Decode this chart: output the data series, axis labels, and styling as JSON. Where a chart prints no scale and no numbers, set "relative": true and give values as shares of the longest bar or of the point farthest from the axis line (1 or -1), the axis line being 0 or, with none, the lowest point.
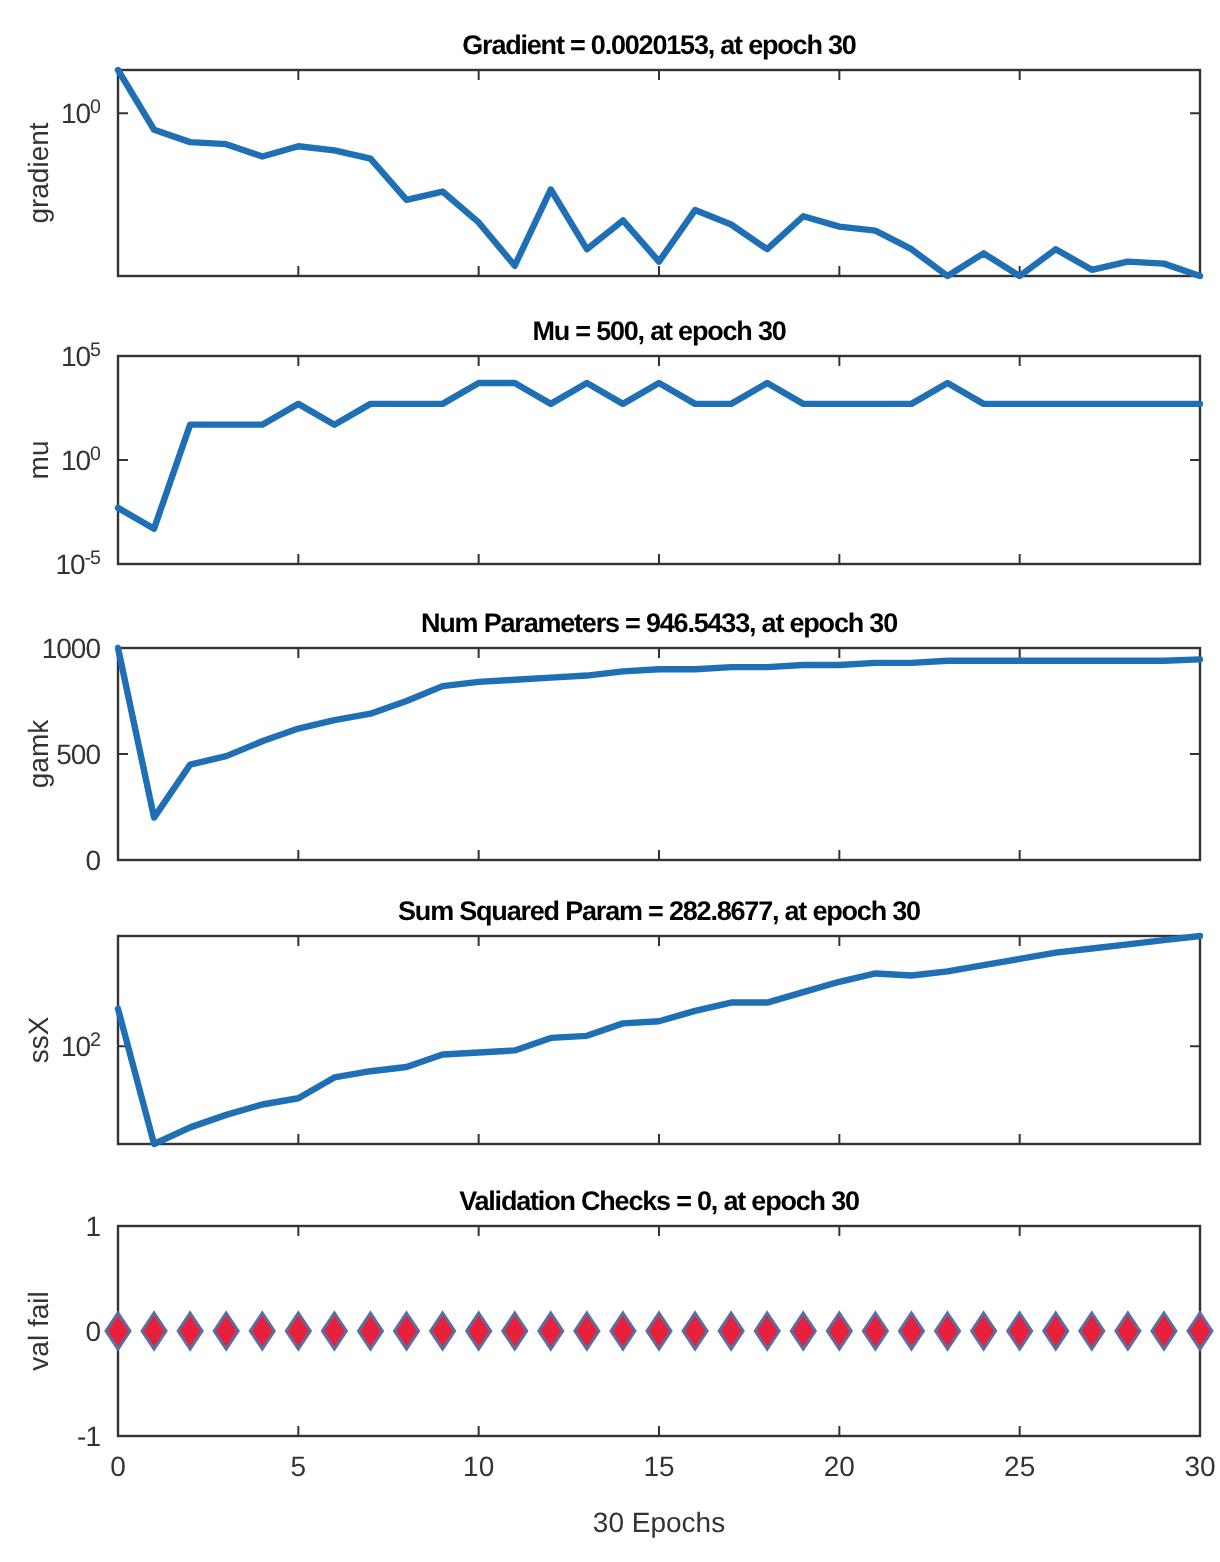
{
  "chart_data": [
    {
      "type": "line",
      "title": "Gradient = 0.0020153, at epoch 30",
      "ylabel": "gradient",
      "relative": true,
      "annotations": [
        "10$^{0}$"
      ],
      "tick_labels": "y",
      "xlim": [
        0,
        30
      ],
      "xticks": [
        0,
        5,
        10,
        15,
        20,
        25,
        30
      ],
      "x": [
        0,
        1,
        2,
        3,
        4,
        5,
        6,
        7,
        8,
        9,
        10,
        11,
        12,
        13,
        14,
        15,
        16,
        17,
        18,
        19,
        20,
        21,
        22,
        23,
        24,
        25,
        26,
        27,
        28,
        29,
        30
      ],
      "series": [
        {
          "color": "#1f6fb5",
          "values": [
            1,
            0.71,
            0.65,
            0.64,
            0.58,
            0.63,
            0.61,
            0.57,
            0.37,
            0.41,
            0.26,
            0.05,
            0.42,
            0.13,
            0.27,
            0.07,
            0.32,
            0.25,
            0.13,
            0.29,
            0.24,
            0.22,
            0.13,
            0,
            0.11,
            0,
            0.13,
            0.03,
            0.07,
            0.06,
            0
          ]
        }
      ]
    },
    {
      "type": "line",
      "title": "Mu = 500, at epoch 30",
      "ylabel": "mu",
      "log": "y",
      "tick_labels": "y",
      "xlim": [
        0,
        30
      ],
      "xticks": [
        0,
        5,
        10,
        15,
        20,
        25,
        30
      ],
      "ylim": [
        1e-05,
        100000
      ],
      "yticks": [
        {
          "value": 1e-05,
          "label": "10$^{-5}$"
        },
        {
          "value": 1,
          "label": "10$^{0}$"
        },
        {
          "value": 100000,
          "label": "10$^{5}$"
        }
      ],
      "x": [
        0,
        1,
        2,
        3,
        4,
        5,
        6,
        7,
        8,
        9,
        10,
        11,
        12,
        13,
        14,
        15,
        16,
        17,
        18,
        19,
        20,
        21,
        22,
        23,
        24,
        25,
        26,
        27,
        28,
        29,
        30
      ],
      "series": [
        {
          "color": "#1f6fb5",
          "values": [
            0.005,
            0.0005,
            50,
            50,
            50,
            500,
            50,
            500,
            500,
            500,
            5000,
            5000,
            500,
            5000,
            500,
            5000,
            500,
            500,
            5000,
            500,
            500,
            500,
            500,
            5000,
            500,
            500,
            500,
            500,
            500,
            500,
            500
          ]
        }
      ]
    },
    {
      "type": "line",
      "title": "Num Parameters = 946.5433, at epoch 30",
      "ylabel": "gamk",
      "tick_labels": "y",
      "xlim": [
        0,
        30
      ],
      "xticks": [
        0,
        5,
        10,
        15,
        20,
        25,
        30
      ],
      "ylim": [
        0,
        1000
      ],
      "yticks": [
        0,
        500,
        1000
      ],
      "x": [
        0,
        1,
        2,
        3,
        4,
        5,
        6,
        7,
        8,
        9,
        10,
        11,
        12,
        13,
        14,
        15,
        16,
        17,
        18,
        19,
        20,
        21,
        22,
        23,
        24,
        25,
        26,
        27,
        28,
        29,
        30
      ],
      "series": [
        {
          "color": "#1f6fb5",
          "values": [
            1000,
            200,
            450,
            490,
            560,
            620,
            660,
            690,
            750,
            820,
            840,
            850,
            860,
            870,
            890,
            900,
            900,
            910,
            910,
            920,
            920,
            930,
            930,
            940,
            940,
            940,
            940,
            940,
            940,
            940,
            946.5433
          ]
        }
      ]
    },
    {
      "type": "line",
      "title": "Sum Squared Param = 282.8677, at epoch 30",
      "ylabel": "ssX",
      "relative": true,
      "annotations": [
        "10$^{2}$"
      ],
      "tick_labels": "y",
      "xlim": [
        0,
        30
      ],
      "xticks": [
        0,
        5,
        10,
        15,
        20,
        25,
        30
      ],
      "x": [
        0,
        1,
        2,
        3,
        4,
        5,
        6,
        7,
        8,
        9,
        10,
        11,
        12,
        13,
        14,
        15,
        16,
        17,
        18,
        19,
        20,
        21,
        22,
        23,
        24,
        25,
        26,
        27,
        28,
        29,
        30
      ],
      "series": [
        {
          "color": "#1f6fb5",
          "values": [
            0.65,
            0,
            0.08,
            0.14,
            0.19,
            0.22,
            0.32,
            0.35,
            0.37,
            0.43,
            0.44,
            0.45,
            0.51,
            0.52,
            0.58,
            0.59,
            0.64,
            0.68,
            0.68,
            0.73,
            0.78,
            0.82,
            0.81,
            0.83,
            0.86,
            0.89,
            0.92,
            0.94,
            0.96,
            0.98,
            1
          ]
        }
      ]
    },
    {
      "type": "scatter",
      "title": "Validation Checks = 0, at epoch 30",
      "xlabel": "30 Epochs",
      "ylabel": "val fail",
      "marker": "diamond",
      "xlim": [
        0,
        30
      ],
      "xticks": [
        0,
        5,
        10,
        15,
        20,
        25,
        30
      ],
      "ylim": [
        -1,
        1
      ],
      "yticks": [
        -1,
        0,
        1
      ],
      "x": [
        0,
        1,
        2,
        3,
        4,
        5,
        6,
        7,
        8,
        9,
        10,
        11,
        12,
        13,
        14,
        15,
        16,
        17,
        18,
        19,
        20,
        21,
        22,
        23,
        24,
        25,
        26,
        27,
        28,
        29,
        30
      ],
      "series": [
        {
          "color": "#e8203c",
          "values": [
            0,
            0,
            0,
            0,
            0,
            0,
            0,
            0,
            0,
            0,
            0,
            0,
            0,
            0,
            0,
            0,
            0,
            0,
            0,
            0,
            0,
            0,
            0,
            0,
            0,
            0,
            0,
            0,
            0,
            0,
            0
          ]
        }
      ]
    }
  ]
}
